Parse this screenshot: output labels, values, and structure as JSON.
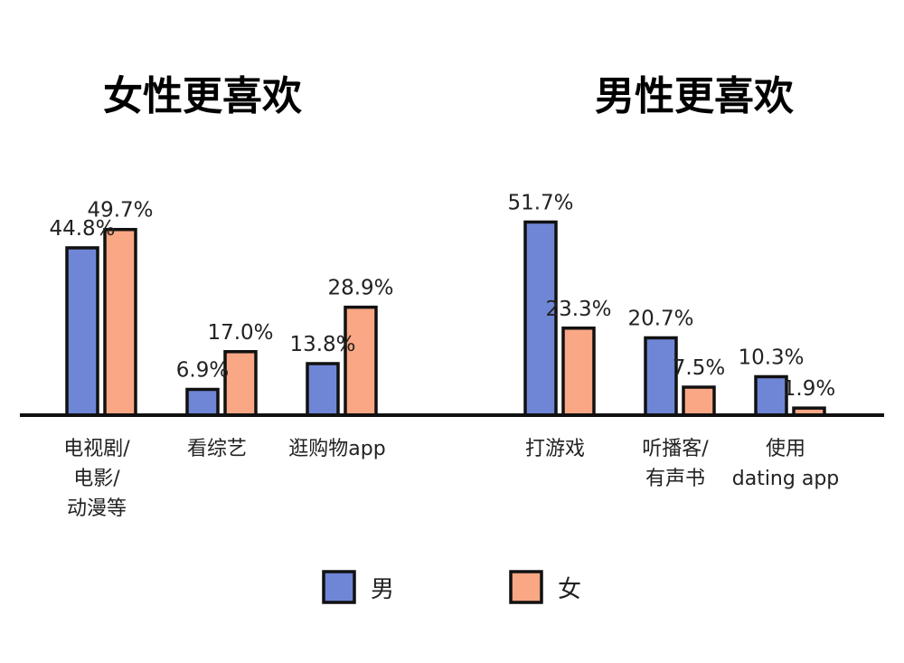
{
  "chart_data": {
    "type": "bar",
    "value_unit": "%",
    "ylim": [
      0,
      60
    ],
    "grid": false,
    "legend_position": "bottom-center",
    "groups": [
      {
        "title": "女性更喜欢",
        "categories": [
          {
            "lines": [
              "电视剧/",
              "电影/",
              "动漫等"
            ],
            "values": [
              44.8,
              49.7
            ],
            "labels": [
              "44.8%",
              "49.7%"
            ]
          },
          {
            "lines": [
              "看综艺"
            ],
            "values": [
              6.9,
              17.0
            ],
            "labels": [
              "6.9%",
              "17.0%"
            ]
          },
          {
            "lines": [
              "逛购物app"
            ],
            "values": [
              13.8,
              28.9
            ],
            "labels": [
              "13.8%",
              "28.9%"
            ]
          }
        ]
      },
      {
        "title": "男性更喜欢",
        "categories": [
          {
            "lines": [
              "打游戏"
            ],
            "values": [
              51.7,
              23.3
            ],
            "labels": [
              "51.7%",
              "23.3%"
            ]
          },
          {
            "lines": [
              "听播客/",
              "有声书"
            ],
            "values": [
              20.7,
              7.5
            ],
            "labels": [
              "20.7%",
              "7.5%"
            ]
          },
          {
            "lines": [
              "使用",
              "dating app"
            ],
            "values": [
              10.3,
              1.9
            ],
            "labels": [
              "10.3%",
              "1.9%"
            ]
          }
        ]
      }
    ],
    "series": [
      {
        "name": "男",
        "color": "#6f86d6"
      },
      {
        "name": "女",
        "color": "#f9a784"
      }
    ]
  }
}
